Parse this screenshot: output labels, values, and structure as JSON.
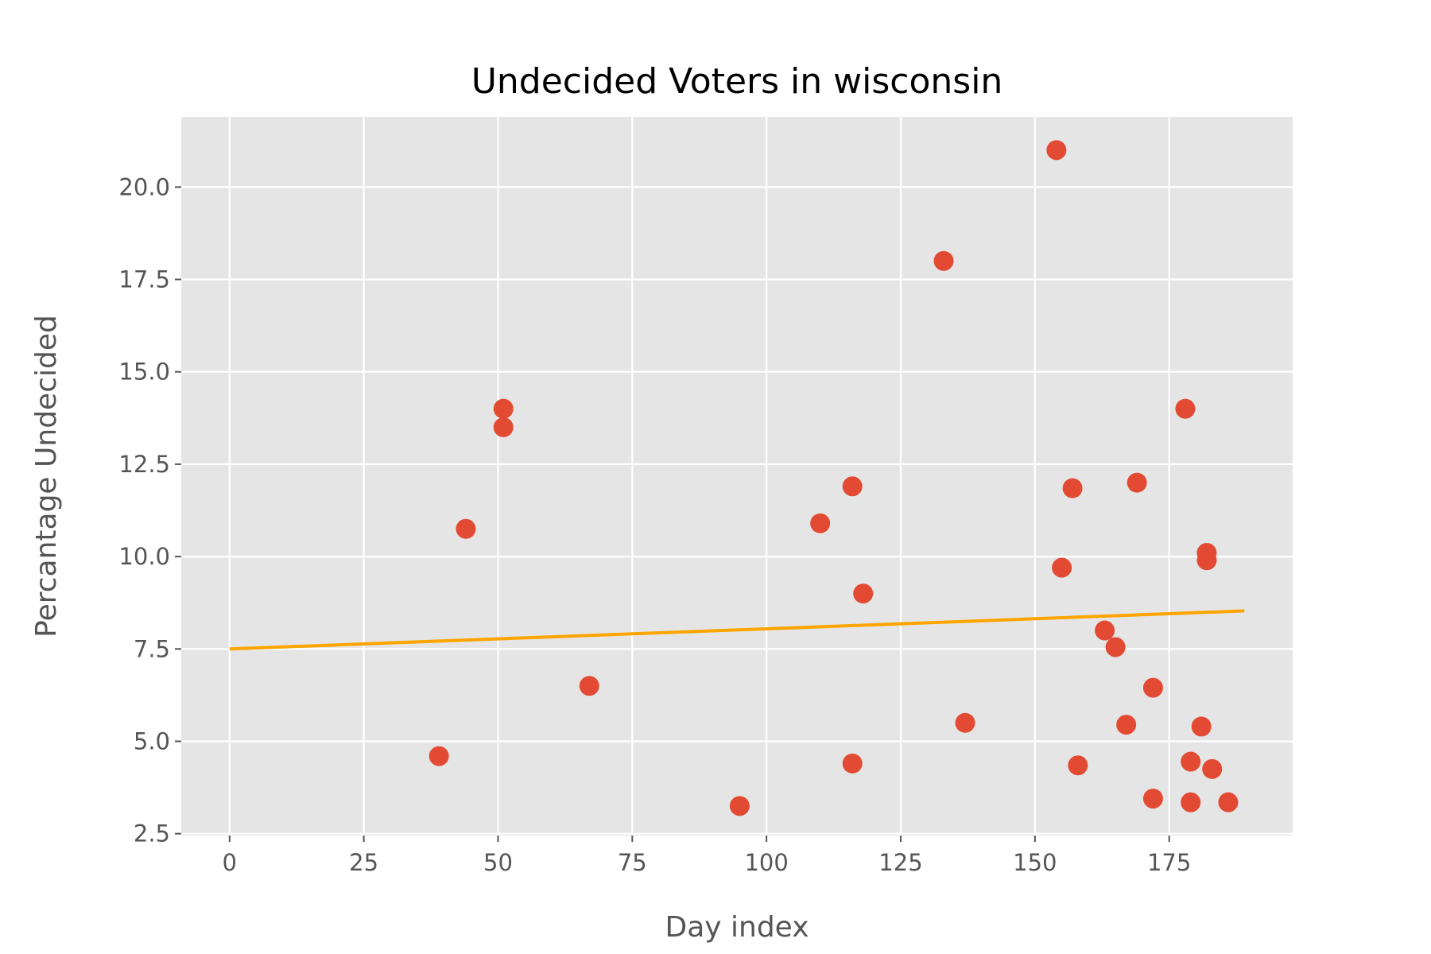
{
  "chart_data": {
    "type": "scatter",
    "title": "Undecided Voters in wisconsin",
    "xlabel": "Day index",
    "ylabel": "Percantage Undecided",
    "xlim": [
      -9,
      198
    ],
    "ylim": [
      2.45,
      21.9
    ],
    "xticks": [
      0,
      25,
      50,
      75,
      100,
      125,
      150,
      175
    ],
    "xtick_labels": [
      "0",
      "25",
      "50",
      "75",
      "100",
      "125",
      "150",
      "175"
    ],
    "yticks": [
      2.5,
      5.0,
      7.5,
      10.0,
      12.5,
      15.0,
      17.5,
      20.0
    ],
    "ytick_labels": [
      "2.5",
      "5.0",
      "7.5",
      "10.0",
      "12.5",
      "15.0",
      "17.5",
      "20.0"
    ],
    "grid": true,
    "legend": "none",
    "series": [
      {
        "kind": "scatter",
        "color": "#E24A33",
        "points": [
          {
            "x": 39,
            "y": 4.6
          },
          {
            "x": 44,
            "y": 10.75
          },
          {
            "x": 51,
            "y": 14.0
          },
          {
            "x": 51,
            "y": 13.5
          },
          {
            "x": 67,
            "y": 6.5
          },
          {
            "x": 95,
            "y": 3.25
          },
          {
            "x": 110,
            "y": 10.9
          },
          {
            "x": 116,
            "y": 11.9
          },
          {
            "x": 116,
            "y": 4.4
          },
          {
            "x": 118,
            "y": 9.0
          },
          {
            "x": 133,
            "y": 18.0
          },
          {
            "x": 137,
            "y": 5.5
          },
          {
            "x": 154,
            "y": 21.0
          },
          {
            "x": 155,
            "y": 9.7
          },
          {
            "x": 157,
            "y": 11.85
          },
          {
            "x": 158,
            "y": 4.35
          },
          {
            "x": 163,
            "y": 8.0
          },
          {
            "x": 165,
            "y": 7.55
          },
          {
            "x": 167,
            "y": 5.45
          },
          {
            "x": 169,
            "y": 12.0
          },
          {
            "x": 172,
            "y": 6.45
          },
          {
            "x": 172,
            "y": 3.45
          },
          {
            "x": 178,
            "y": 14.0
          },
          {
            "x": 179,
            "y": 4.45
          },
          {
            "x": 179,
            "y": 3.35
          },
          {
            "x": 181,
            "y": 5.4
          },
          {
            "x": 182,
            "y": 10.1
          },
          {
            "x": 182,
            "y": 9.9
          },
          {
            "x": 183,
            "y": 4.25
          },
          {
            "x": 186,
            "y": 3.35
          }
        ]
      },
      {
        "kind": "line",
        "color": "#FFA500",
        "points": [
          {
            "x": 0,
            "y": 7.5
          },
          {
            "x": 189,
            "y": 8.53
          }
        ]
      }
    ]
  }
}
